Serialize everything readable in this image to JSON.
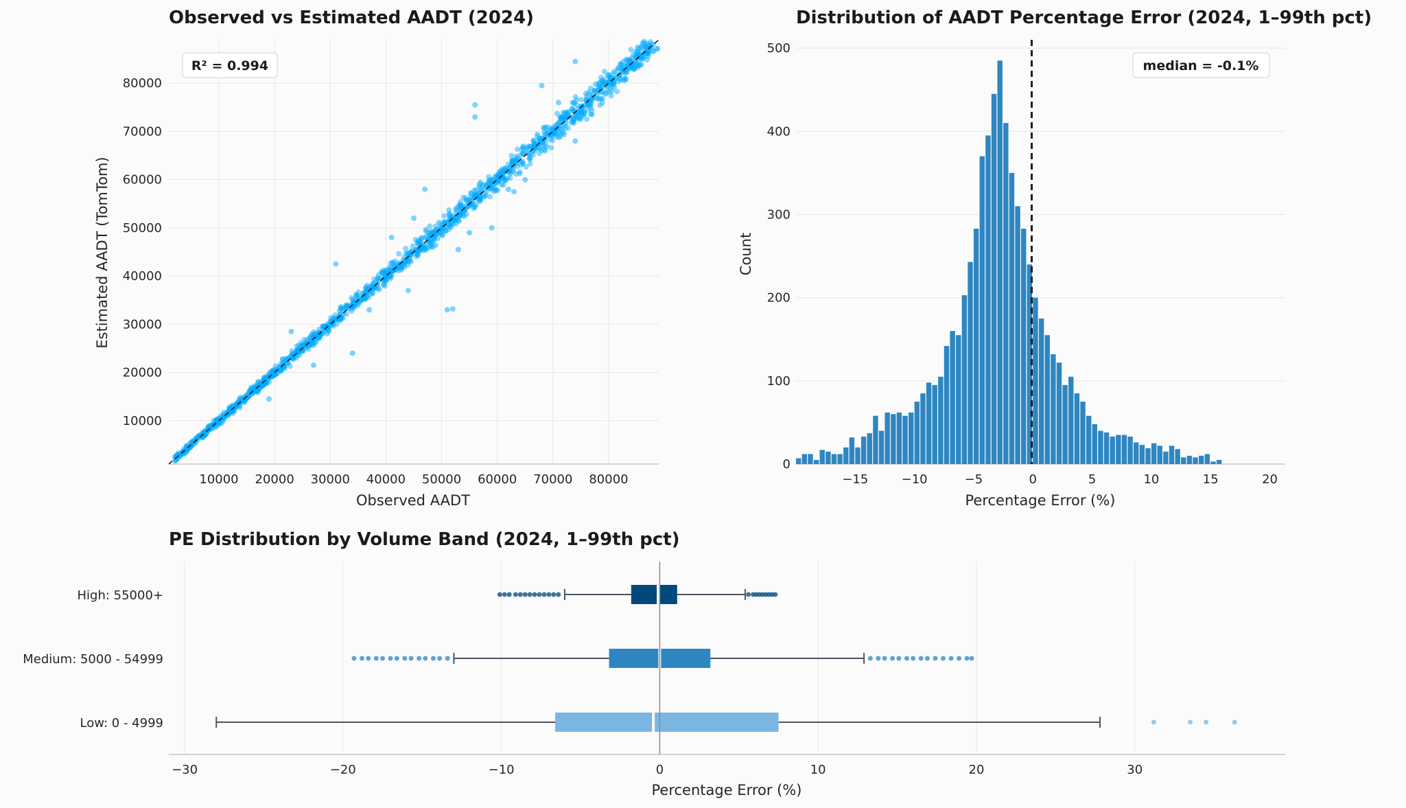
{
  "chart_data": [
    {
      "type": "scatter",
      "title": "Observed vs Estimated AADT (2024)",
      "xlabel": "Observed AADT",
      "ylabel": "Estimated AADT (TomTom)",
      "xlim": [
        1000,
        89000
      ],
      "ylim": [
        1000,
        89000
      ],
      "xticks": [
        10000,
        20000,
        30000,
        40000,
        50000,
        60000,
        70000,
        80000
      ],
      "yticks": [
        10000,
        20000,
        30000,
        40000,
        50000,
        60000,
        70000,
        80000
      ],
      "grid": true,
      "point_color": "#00aaff",
      "reference_line": "y = x (dashed)",
      "annotation": "R² = 0.994",
      "annotation_position": "top-left",
      "points": [
        [
          2500,
          2800
        ],
        [
          4000,
          3600
        ],
        [
          6000,
          6400
        ],
        [
          8000,
          7800
        ],
        [
          10000,
          10500
        ],
        [
          12000,
          11800
        ],
        [
          15000,
          14600
        ],
        [
          18000,
          18400
        ],
        [
          20000,
          19500
        ],
        [
          22000,
          22500
        ],
        [
          25000,
          24400
        ],
        [
          28000,
          28300
        ],
        [
          30000,
          30500
        ],
        [
          32000,
          31500
        ],
        [
          34000,
          34400
        ],
        [
          36000,
          35600
        ],
        [
          38000,
          37700
        ],
        [
          40000,
          40600
        ],
        [
          42000,
          41500
        ],
        [
          44000,
          44600
        ],
        [
          46000,
          45400
        ],
        [
          48000,
          48500
        ],
        [
          50000,
          49700
        ],
        [
          52000,
          52400
        ],
        [
          54000,
          53500
        ],
        [
          56000,
          56600
        ],
        [
          58000,
          57400
        ],
        [
          60000,
          60500
        ],
        [
          62000,
          61600
        ],
        [
          64000,
          64200
        ],
        [
          66000,
          65400
        ],
        [
          68000,
          68600
        ],
        [
          70000,
          69600
        ],
        [
          72000,
          72300
        ],
        [
          74000,
          73500
        ],
        [
          76000,
          76400
        ],
        [
          78000,
          77600
        ],
        [
          80000,
          80300
        ],
        [
          82000,
          81700
        ],
        [
          84000,
          84500
        ],
        [
          86000,
          85400
        ],
        [
          88000,
          88000
        ],
        [
          31000,
          42500
        ],
        [
          34000,
          24000
        ],
        [
          37000,
          33000
        ],
        [
          45000,
          52000
        ],
        [
          47000,
          58000
        ],
        [
          51000,
          33000
        ],
        [
          52000,
          33200
        ],
        [
          55000,
          49000
        ],
        [
          56000,
          75500
        ],
        [
          56000,
          73000
        ],
        [
          59000,
          50000
        ],
        [
          62000,
          58000
        ],
        [
          63000,
          57500
        ],
        [
          68000,
          79500
        ],
        [
          71000,
          76000
        ],
        [
          74000,
          84500
        ],
        [
          74000,
          68000
        ],
        [
          77000,
          73500
        ],
        [
          41000,
          48000
        ],
        [
          44000,
          37000
        ],
        [
          27000,
          21500
        ],
        [
          23000,
          28500
        ],
        [
          19000,
          14500
        ],
        [
          53000,
          45500
        ],
        [
          65000,
          60000
        ]
      ]
    },
    {
      "type": "bar",
      "title": "Distribution of AADT Percentage Error (2024, 1–99th pct)",
      "xlabel": "Percentage Error (%)",
      "ylabel": "Count",
      "xlim": [
        -20,
        21.3
      ],
      "ylim": [
        0,
        510
      ],
      "xticks": [
        -15,
        -10,
        -5,
        0,
        5,
        10,
        15,
        20
      ],
      "yticks": [
        0,
        100,
        200,
        300,
        400,
        500
      ],
      "bar_color": "#2e86c1",
      "median_line": -0.1,
      "annotation": "median = -0.1%",
      "annotation_position": "top-right",
      "bin_start": -20,
      "bin_width": 0.5,
      "counts": [
        7,
        12,
        12,
        5,
        17,
        15,
        12,
        12,
        20,
        32,
        20,
        33,
        37,
        58,
        40,
        62,
        60,
        62,
        58,
        62,
        75,
        85,
        98,
        95,
        105,
        142,
        160,
        155,
        203,
        243,
        283,
        370,
        395,
        445,
        485,
        410,
        350,
        310,
        283,
        240,
        200,
        175,
        155,
        132,
        122,
        95,
        105,
        85,
        75,
        58,
        48,
        40,
        38,
        33,
        35,
        35,
        33,
        26,
        23,
        19,
        25,
        22,
        15,
        22,
        18,
        8,
        10,
        8,
        10,
        12,
        3,
        5
      ]
    },
    {
      "type": "boxplot",
      "title": "PE Distribution by Volume Band (2024, 1–99th pct)",
      "xlabel": "Percentage Error (%)",
      "xlim": [
        -31,
        39.5
      ],
      "xticks": [
        -30,
        -20,
        -10,
        0,
        10,
        20,
        30
      ],
      "grid": true,
      "zero_line": 0,
      "bands": [
        {
          "label": "High: 55000+",
          "color": "#00497a",
          "q1": -1.8,
          "median": -0.1,
          "q3": 1.1,
          "whisker_low": -6.0,
          "whisker_high": 5.4,
          "outliers": [
            -10.1,
            -9.8,
            -9.5,
            -9.1,
            -8.8,
            -8.5,
            -8.2,
            -7.9,
            -7.6,
            -7.3,
            -7.0,
            -6.7,
            -6.4,
            5.6,
            5.9,
            6.1,
            6.3,
            6.5,
            6.7,
            6.9,
            7.1,
            7.3
          ]
        },
        {
          "label": "Medium: 5000 - 54999",
          "color": "#2e86c1",
          "q1": -3.2,
          "median": 0.0,
          "q3": 3.2,
          "whisker_low": -13.0,
          "whisker_high": 12.9,
          "outliers": [
            -19.3,
            -18.8,
            -18.4,
            -17.9,
            -17.5,
            -17.0,
            -16.6,
            -16.1,
            -15.7,
            -15.2,
            -14.8,
            -14.3,
            -13.9,
            -13.4,
            13.3,
            13.8,
            14.2,
            14.7,
            15.1,
            15.6,
            16.0,
            16.5,
            16.9,
            17.4,
            17.9,
            18.4,
            18.9,
            19.4,
            19.7
          ]
        },
        {
          "label": "Low: 0 - 4999",
          "color": "#7bb6e3",
          "q1": -6.6,
          "median": -0.4,
          "q3": 7.5,
          "whisker_low": -28.0,
          "whisker_high": 27.8,
          "outliers": [
            31.2,
            33.5,
            34.5,
            36.3
          ]
        }
      ]
    }
  ]
}
